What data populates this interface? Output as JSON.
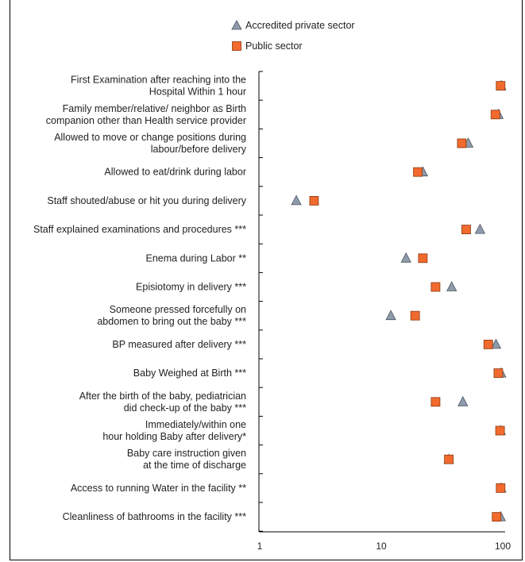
{
  "chart_data": {
    "type": "scatter",
    "x_scale": "log",
    "xlim": [
      1,
      100
    ],
    "x_ticks": [
      "1",
      "10",
      "100"
    ],
    "grid": false,
    "legend_position": "top",
    "categories": [
      "First Examination after reaching into the\nHospital Within 1 hour",
      "Family member/relative/ neighbor as Birth\ncompanion other than Health service provider",
      "Allowed to move or change positions during\nlabour/before delivery",
      "Allowed to eat/drink during labor",
      "Staff shouted/abuse or hit you during delivery",
      "Staff explained examinations and procedures ***",
      "Enema during Labor **",
      "Episiotomy in delivery ***",
      "Someone pressed forcefully on\nabdomen to bring out the baby ***",
      "BP measured after delivery ***",
      "Baby Weighed at Birth ***",
      "After the birth of the baby, pediatrician\ndid check-up of the baby ***",
      "Immediately/within one\nhour holding Baby after delivery*",
      "Baby care instruction given\nat the time of discharge",
      "Access to running Water in the facility **",
      "Cleanliness of bathrooms in the facility ***"
    ],
    "series": [
      {
        "name": "Accredited private sector",
        "marker": "triangle",
        "color": "#8E9BAA",
        "values": [
          97,
          92,
          52,
          22,
          2,
          65,
          16,
          38,
          12,
          88,
          97,
          47,
          96,
          36,
          97,
          96
        ]
      },
      {
        "name": "Public sector",
        "marker": "square",
        "color": "#F26A2E",
        "values": [
          96,
          87,
          46,
          20,
          2.8,
          50,
          22,
          28,
          19,
          76,
          92,
          28,
          95,
          36,
          96,
          89
        ]
      }
    ]
  }
}
